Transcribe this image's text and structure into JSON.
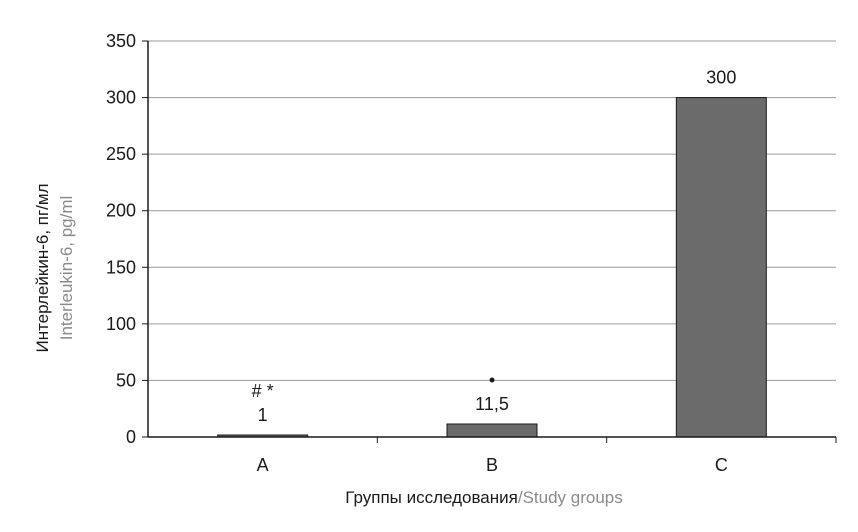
{
  "chart_data": {
    "type": "bar",
    "categories": [
      "A",
      "B",
      "C"
    ],
    "values": [
      1,
      11.5,
      300
    ],
    "value_labels": [
      "1",
      "11,5",
      "300"
    ],
    "markers": [
      "# *",
      "•",
      ""
    ],
    "ylim": [
      0,
      350
    ],
    "yticks": [
      0,
      50,
      100,
      150,
      200,
      250,
      300,
      350
    ],
    "grid": true,
    "bar_color": "#6b6b6b",
    "ylabel": {
      "ru": "Интерлейкин-6, пг/мл",
      "en": "Interleukin-6, pg/ml"
    },
    "xlabel": {
      "ru": "Группы исследования",
      "sep": "/",
      "en": "Study groups"
    }
  }
}
